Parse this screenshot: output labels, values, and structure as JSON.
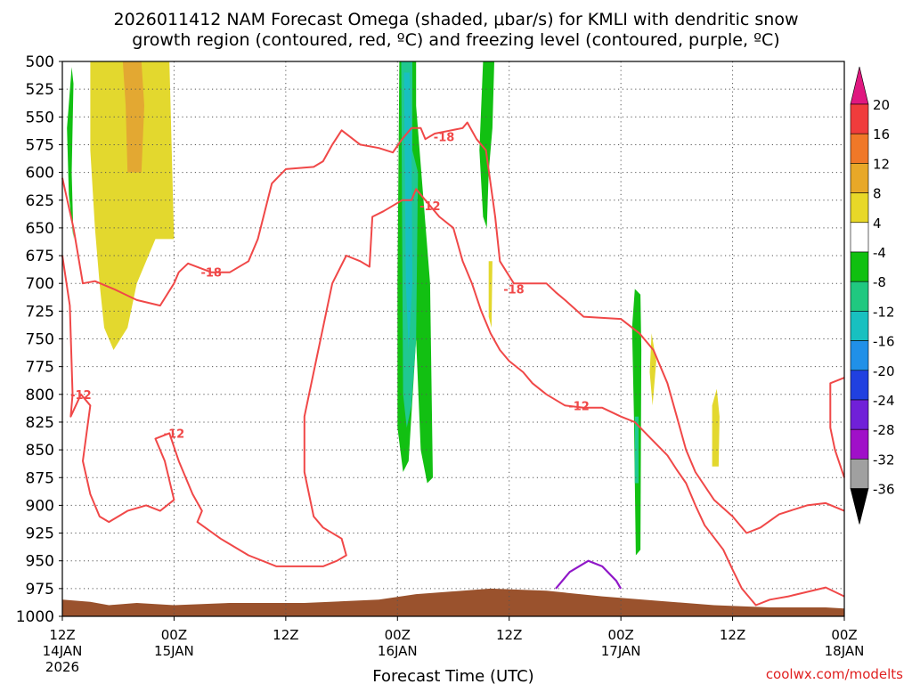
{
  "title_line1": "2026011412 NAM Forecast Omega (shaded, μbar/s) for KMLI with dendritic snow",
  "title_line2": "growth region (contoured, red, ºC) and freezing level (contoured, purple, ºC)",
  "credit": "coolwx.com/modelts",
  "chart_data": {
    "type": "area",
    "title": "2026011412 NAM Forecast Omega (shaded, μbar/s) for KMLI with dendritic snow growth region (contoured, red, ºC) and freezing level (contoured, purple, ºC)",
    "xlabel": "Forecast Time (UTC)",
    "ylabel": "",
    "x_range_hours": [
      0,
      84
    ],
    "x_ticks": [
      {
        "h": 0,
        "label": "12Z",
        "date": "14JAN",
        "year": "2026"
      },
      {
        "h": 12,
        "label": "00Z",
        "date": "15JAN",
        "year": ""
      },
      {
        "h": 24,
        "label": "12Z",
        "date": "",
        "year": ""
      },
      {
        "h": 36,
        "label": "00Z",
        "date": "16JAN",
        "year": ""
      },
      {
        "h": 48,
        "label": "12Z",
        "date": "",
        "year": ""
      },
      {
        "h": 60,
        "label": "00Z",
        "date": "17JAN",
        "year": ""
      },
      {
        "h": 72,
        "label": "12Z",
        "date": "",
        "year": ""
      },
      {
        "h": 84,
        "label": "00Z",
        "date": "18JAN",
        "year": ""
      }
    ],
    "y_range_hpa": [
      1000,
      500
    ],
    "y_ticks": [
      500,
      525,
      550,
      575,
      600,
      625,
      650,
      675,
      700,
      725,
      750,
      775,
      800,
      825,
      850,
      875,
      900,
      925,
      950,
      975,
      1000
    ],
    "grid": true,
    "colorbar": {
      "labels": [
        "20",
        "16",
        "12",
        "8",
        "4",
        "-4",
        "-8",
        "-12",
        "-16",
        "-20",
        "-24",
        "-28",
        "-32",
        "-36"
      ],
      "colors": [
        "#e01880",
        "#f03c3c",
        "#f07828",
        "#e8a828",
        "#e8d828",
        "#ffffff",
        "#10c010",
        "#20c880",
        "#18c0c0",
        "#2090e8",
        "#2040e0",
        "#7020d8",
        "#a010c8",
        "#a0a0a0",
        "#000000"
      ]
    },
    "omega_regions": [
      {
        "value_range": [
          4,
          8
        ],
        "color": "#e3d82e",
        "pts": [
          [
            3.0,
            500
          ],
          [
            11.5,
            500
          ],
          [
            12.0,
            660
          ],
          [
            10.0,
            660
          ],
          [
            9.0,
            680
          ],
          [
            8.0,
            700
          ],
          [
            7.0,
            740
          ],
          [
            5.5,
            760
          ],
          [
            4.5,
            740
          ],
          [
            4.0,
            700
          ],
          [
            3.5,
            650
          ],
          [
            3.0,
            580
          ]
        ]
      },
      {
        "value_range": [
          8,
          12
        ],
        "color": "#e3a832",
        "pts": [
          [
            6.5,
            500
          ],
          [
            8.5,
            500
          ],
          [
            8.8,
            540
          ],
          [
            8.5,
            600
          ],
          [
            7.0,
            600
          ],
          [
            6.8,
            540
          ]
        ]
      },
      {
        "value_range": [
          -8,
          -4
        ],
        "color": "#12c012",
        "pts": [
          [
            1.0,
            505
          ],
          [
            1.2,
            520
          ],
          [
            1.0,
            600
          ],
          [
            1.2,
            660
          ],
          [
            0.7,
            620
          ],
          [
            0.5,
            560
          ]
        ]
      },
      {
        "value_range": [
          -8,
          -4
        ],
        "color": "#12c012",
        "pts": [
          [
            36.2,
            500
          ],
          [
            38.0,
            500
          ],
          [
            38.0,
            540
          ],
          [
            39.5,
            700
          ],
          [
            39.8,
            875
          ],
          [
            39.2,
            880
          ],
          [
            38.5,
            850
          ],
          [
            38.0,
            750
          ],
          [
            37.2,
            860
          ],
          [
            36.6,
            870
          ],
          [
            36.0,
            830
          ],
          [
            36.0,
            700
          ]
        ]
      },
      {
        "value_range": [
          -12,
          -8
        ],
        "color": "#20c890",
        "pts": [
          [
            36.4,
            500
          ],
          [
            37.6,
            500
          ],
          [
            37.6,
            580
          ],
          [
            38.2,
            600
          ],
          [
            38.0,
            750
          ],
          [
            37.5,
            810
          ],
          [
            37.0,
            830
          ],
          [
            36.6,
            800
          ],
          [
            36.5,
            650
          ]
        ]
      },
      {
        "value_range": [
          -16,
          -12
        ],
        "color": "#18c0c0",
        "pts": [
          [
            36.7,
            510
          ],
          [
            37.3,
            510
          ],
          [
            37.5,
            560
          ],
          [
            37.6,
            700
          ],
          [
            37.2,
            760
          ],
          [
            36.9,
            700
          ],
          [
            36.8,
            600
          ]
        ]
      },
      {
        "value_range": [
          -8,
          -4
        ],
        "color": "#12c012",
        "pts": [
          [
            45.2,
            500
          ],
          [
            46.4,
            500
          ],
          [
            46.2,
            560
          ],
          [
            45.8,
            600
          ],
          [
            45.6,
            650
          ],
          [
            45.2,
            640
          ],
          [
            44.8,
            580
          ]
        ]
      },
      {
        "value_range": [
          -8,
          -4
        ],
        "color": "#12c012",
        "pts": [
          [
            61.5,
            705
          ],
          [
            62.1,
            710
          ],
          [
            62.2,
            760
          ],
          [
            62.1,
            940
          ],
          [
            61.6,
            945
          ],
          [
            61.4,
            820
          ],
          [
            61.2,
            740
          ]
        ]
      },
      {
        "value_range": [
          -12,
          -8
        ],
        "color": "#20c890",
        "pts": [
          [
            61.5,
            820
          ],
          [
            61.9,
            820
          ],
          [
            61.9,
            880
          ],
          [
            61.5,
            880
          ]
        ]
      },
      {
        "value_range": [
          4,
          8
        ],
        "color": "#e3d82e",
        "pts": [
          [
            45.8,
            680
          ],
          [
            46.2,
            680
          ],
          [
            46.1,
            740
          ],
          [
            45.8,
            730
          ]
        ]
      },
      {
        "value_range": [
          4,
          8
        ],
        "color": "#e3d82e",
        "pts": [
          [
            63.3,
            745
          ],
          [
            63.8,
            770
          ],
          [
            63.4,
            810
          ],
          [
            63.1,
            780
          ]
        ]
      },
      {
        "value_range": [
          4,
          8
        ],
        "color": "#e3d82e",
        "pts": [
          [
            69.8,
            810
          ],
          [
            70.3,
            795
          ],
          [
            70.6,
            820
          ],
          [
            70.5,
            865
          ],
          [
            69.8,
            865
          ]
        ]
      }
    ],
    "contours_dgz": [
      {
        "label": "-18",
        "color": "#f04848",
        "label_at": [
          16.0,
          690
        ],
        "pts": [
          [
            0,
            605
          ],
          [
            1.2,
            650
          ],
          [
            2.2,
            700
          ],
          [
            3.5,
            698
          ],
          [
            5.5,
            705
          ],
          [
            8.0,
            715
          ],
          [
            10.5,
            720
          ],
          [
            12.0,
            700
          ],
          [
            12.5,
            690
          ],
          [
            13.5,
            682
          ],
          [
            16.0,
            690
          ],
          [
            18.0,
            690
          ],
          [
            20.0,
            680
          ],
          [
            21.0,
            660
          ],
          [
            22.5,
            610
          ],
          [
            24.0,
            597
          ],
          [
            27.0,
            595
          ],
          [
            28.0,
            590
          ],
          [
            29.0,
            575
          ],
          [
            30.0,
            562
          ],
          [
            32.0,
            575
          ],
          [
            34.0,
            578
          ],
          [
            35.5,
            582
          ],
          [
            36.5,
            570
          ],
          [
            37.5,
            560
          ],
          [
            38.5,
            560
          ],
          [
            39.0,
            570
          ],
          [
            40.0,
            565
          ],
          [
            43.0,
            560
          ],
          [
            43.5,
            555
          ],
          [
            44.5,
            570
          ],
          [
            45.5,
            580
          ],
          [
            46.5,
            640
          ],
          [
            47.0,
            680
          ],
          [
            48.5,
            700
          ],
          [
            52.0,
            700
          ],
          [
            53.0,
            708
          ],
          [
            54.0,
            715
          ],
          [
            56.0,
            730
          ],
          [
            60.0,
            732
          ],
          [
            62.0,
            745
          ],
          [
            63.5,
            760
          ],
          [
            65.0,
            790
          ],
          [
            66.0,
            820
          ],
          [
            67.0,
            850
          ],
          [
            68.0,
            870
          ],
          [
            70.0,
            895
          ],
          [
            72.0,
            910
          ],
          [
            73.5,
            925
          ],
          [
            75.0,
            920
          ],
          [
            77.0,
            908
          ],
          [
            80.0,
            900
          ],
          [
            82.0,
            898
          ],
          [
            84.0,
            905
          ]
        ]
      },
      {
        "label": "-12",
        "color": "#f04848",
        "label_at": [
          2.0,
          800
        ],
        "pts": [
          [
            0,
            675
          ],
          [
            0.8,
            720
          ],
          [
            1.1,
            800
          ],
          [
            0.9,
            820
          ],
          [
            2.0,
            800
          ],
          [
            3.0,
            810
          ],
          [
            2.2,
            860
          ],
          [
            3.0,
            890
          ],
          [
            4.0,
            910
          ],
          [
            5.0,
            915
          ],
          [
            7.0,
            905
          ],
          [
            9.0,
            900
          ],
          [
            10.5,
            905
          ],
          [
            12.0,
            895
          ],
          [
            11.0,
            860
          ],
          [
            10.0,
            840
          ],
          [
            11.5,
            835
          ],
          [
            12.5,
            860
          ],
          [
            14.0,
            890
          ],
          [
            15.0,
            905
          ],
          [
            14.5,
            915
          ],
          [
            17.0,
            930
          ],
          [
            20.0,
            945
          ],
          [
            23.0,
            955
          ],
          [
            26.0,
            955
          ],
          [
            28.0,
            955
          ],
          [
            29.5,
            950
          ],
          [
            30.5,
            945
          ],
          [
            30.0,
            930
          ],
          [
            28.0,
            920
          ],
          [
            27.0,
            910
          ],
          [
            26.0,
            870
          ],
          [
            26.0,
            820
          ],
          [
            27.5,
            760
          ],
          [
            29.0,
            700
          ],
          [
            30.5,
            675
          ],
          [
            32.0,
            680
          ],
          [
            33.0,
            685
          ],
          [
            33.3,
            640
          ],
          [
            34.5,
            635
          ],
          [
            36.5,
            625
          ],
          [
            37.5,
            625
          ],
          [
            38.0,
            615
          ],
          [
            39.0,
            625
          ],
          [
            40.5,
            640
          ],
          [
            42.0,
            650
          ],
          [
            43.0,
            680
          ],
          [
            44.0,
            700
          ],
          [
            45.0,
            725
          ],
          [
            46.0,
            745
          ],
          [
            47.0,
            760
          ],
          [
            48.0,
            770
          ],
          [
            49.5,
            780
          ],
          [
            50.5,
            790
          ],
          [
            52.0,
            800
          ],
          [
            54.0,
            810
          ],
          [
            56.0,
            812
          ],
          [
            58.0,
            812
          ],
          [
            60.0,
            820
          ],
          [
            61.5,
            825
          ],
          [
            63.0,
            838
          ],
          [
            65.0,
            855
          ],
          [
            66.0,
            868
          ],
          [
            67.0,
            880
          ],
          [
            68.0,
            900
          ],
          [
            69.0,
            918
          ],
          [
            71.0,
            940
          ],
          [
            72.0,
            958
          ],
          [
            73.0,
            975
          ],
          [
            74.5,
            990
          ],
          [
            76.0,
            985
          ],
          [
            78.0,
            982
          ],
          [
            80.0,
            978
          ],
          [
            82.0,
            974
          ],
          [
            83.0,
            978
          ],
          [
            84.0,
            982
          ]
        ]
      },
      {
        "label": "",
        "color": "#f04848",
        "label_at": null,
        "pts": [
          [
            84.0,
            785
          ],
          [
            82.5,
            790
          ],
          [
            82.5,
            830
          ],
          [
            83.0,
            850
          ],
          [
            84.0,
            875
          ]
        ]
      }
    ],
    "contours_freezing": [
      {
        "label": "",
        "color": "#9018c8",
        "pts": [
          [
            53.0,
            975
          ],
          [
            54.5,
            960
          ],
          [
            56.5,
            950
          ],
          [
            58.0,
            955
          ],
          [
            59.5,
            968
          ],
          [
            60.0,
            975
          ]
        ]
      }
    ],
    "terrain": {
      "color": "#9a522d",
      "pts": [
        [
          0,
          985
        ],
        [
          3,
          987
        ],
        [
          5,
          990
        ],
        [
          8,
          988
        ],
        [
          12,
          990
        ],
        [
          18,
          988
        ],
        [
          26,
          988
        ],
        [
          34,
          985
        ],
        [
          38,
          980
        ],
        [
          46,
          975
        ],
        [
          52,
          977
        ],
        [
          58,
          982
        ],
        [
          64,
          986
        ],
        [
          70,
          990
        ],
        [
          76,
          992
        ],
        [
          82,
          992
        ],
        [
          84,
          993
        ]
      ]
    }
  }
}
